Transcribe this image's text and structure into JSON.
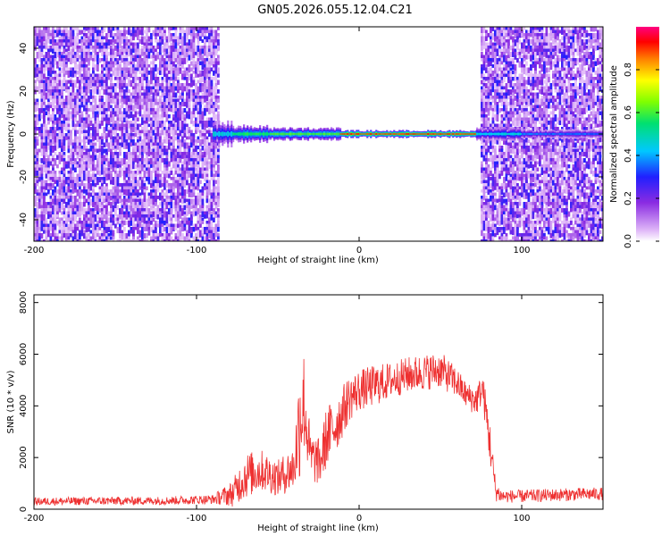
{
  "title": "GN05.2026.055.12.04.C21",
  "chart_data": [
    {
      "type": "heatmap",
      "xlabel": "Height of straight line (km)",
      "ylabel": "Frequency (Hz)",
      "xlim": [
        -200,
        150
      ],
      "ylim": [
        -50,
        50
      ],
      "x_ticks": [
        -200,
        -100,
        0,
        100
      ],
      "y_ticks": [
        -40,
        -20,
        0,
        20,
        40
      ],
      "colorbar": {
        "label": "Normalized spectral amplitude",
        "range": [
          0.0,
          1.0
        ],
        "ticks": [
          0.0,
          0.2,
          0.4,
          0.6,
          0.8
        ],
        "colors": [
          "#e8c8f8",
          "#8a2be2",
          "#3020ff",
          "#00bfff",
          "#00e070",
          "#70ff00",
          "#ffff00",
          "#ff8000",
          "#ff0000",
          "#ff0080"
        ]
      },
      "noise_regions_km": [
        [
          -200,
          -86
        ],
        [
          74,
          150
        ]
      ],
      "ridge": {
        "frequency_hz": 0,
        "segments": [
          {
            "x": [
              -90,
              -78
            ],
            "amplitude": 0.45,
            "half_width_hz": 5
          },
          {
            "x": [
              -78,
              -55
            ],
            "amplitude": 0.55,
            "half_width_hz": 3.5
          },
          {
            "x": [
              -55,
              -12
            ],
            "amplitude": 0.6,
            "half_width_hz": 2.5
          },
          {
            "x": [
              -12,
              72
            ],
            "amplitude": 0.9,
            "half_width_hz": 1.5
          },
          {
            "x": [
              72,
              100
            ],
            "amplitude": 0.45,
            "half_width_hz": 2.5
          },
          {
            "x": [
              100,
              150
            ],
            "amplitude": 0.35,
            "half_width_hz": 1.8
          }
        ]
      }
    },
    {
      "type": "line",
      "xlabel": "Height of straight line (km)",
      "ylabel": "SNR (10 * v/v)",
      "xlim": [
        -200,
        150
      ],
      "ylim": [
        0,
        8300
      ],
      "x_ticks": [
        -200,
        -100,
        0,
        100
      ],
      "y_ticks": [
        0,
        2000,
        4000,
        6000,
        8000
      ],
      "color": "#ee3030",
      "envelope": {
        "x": [
          -200,
          -160,
          -120,
          -90,
          -78,
          -70,
          -60,
          -50,
          -40,
          -36,
          -34,
          -30,
          -24,
          -20,
          -14,
          -10,
          -6,
          0,
          10,
          20,
          30,
          40,
          50,
          60,
          66,
          72,
          76,
          80,
          84,
          88,
          100,
          120,
          150
        ],
        "mean": [
          300,
          320,
          330,
          380,
          600,
          1300,
          1500,
          1200,
          1600,
          3800,
          4200,
          2000,
          1800,
          2800,
          3300,
          3800,
          4300,
          4600,
          4800,
          5000,
          5200,
          5300,
          5400,
          4900,
          4400,
          4200,
          4700,
          2800,
          700,
          500,
          500,
          550,
          600
        ],
        "spread": [
          150,
          160,
          160,
          180,
          500,
          900,
          800,
          700,
          900,
          2600,
          2000,
          1000,
          900,
          1200,
          1100,
          1000,
          900,
          800,
          800,
          700,
          700,
          700,
          700,
          600,
          500,
          600,
          600,
          900,
          400,
          250,
          250,
          250,
          250
        ]
      }
    }
  ]
}
